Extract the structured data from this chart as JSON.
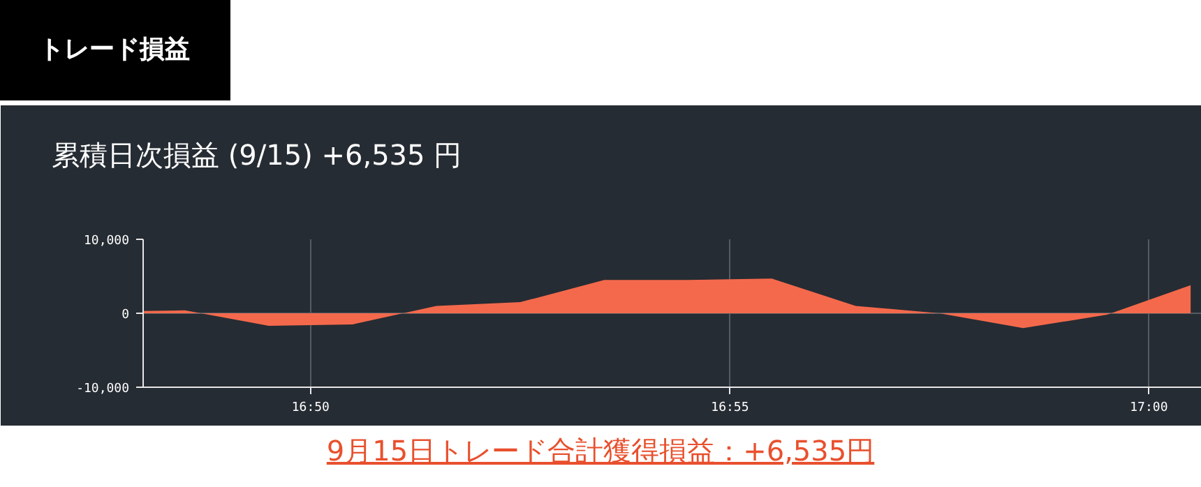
{
  "chart_data": {
    "type": "area",
    "title": "トレード損益",
    "subtitle": "累積日次損益 (9/15) +6,535 円",
    "annotations": [
      "9月15日トレード合計獲得損益：+6,535円"
    ],
    "x": [
      16.8,
      16.8083,
      16.825,
      16.8417,
      16.8583,
      16.875,
      16.8917,
      16.9083,
      16.925,
      16.9417,
      16.9583,
      16.975,
      16.9917,
      17.0083
    ],
    "series": [
      {
        "color": "#f4694c",
        "values": [
          300,
          400,
          -1700,
          -1500,
          1000,
          1500,
          4500,
          4500,
          4700,
          1000,
          0,
          -2000,
          -200,
          3800
        ]
      }
    ],
    "xlim": [
      16.8,
      17.0105
    ],
    "ylim": [
      -10000,
      10000
    ],
    "xticks": [
      {
        "value": 16.8333,
        "label": "16:50"
      },
      {
        "value": 16.9167,
        "label": "16:55"
      },
      {
        "value": 17.0,
        "label": "17:00"
      }
    ],
    "yticks": [
      {
        "value": 10000,
        "label": "10,000"
      },
      0,
      {
        "value": -10000,
        "label": "-10,000"
      }
    ],
    "grid": true
  }
}
